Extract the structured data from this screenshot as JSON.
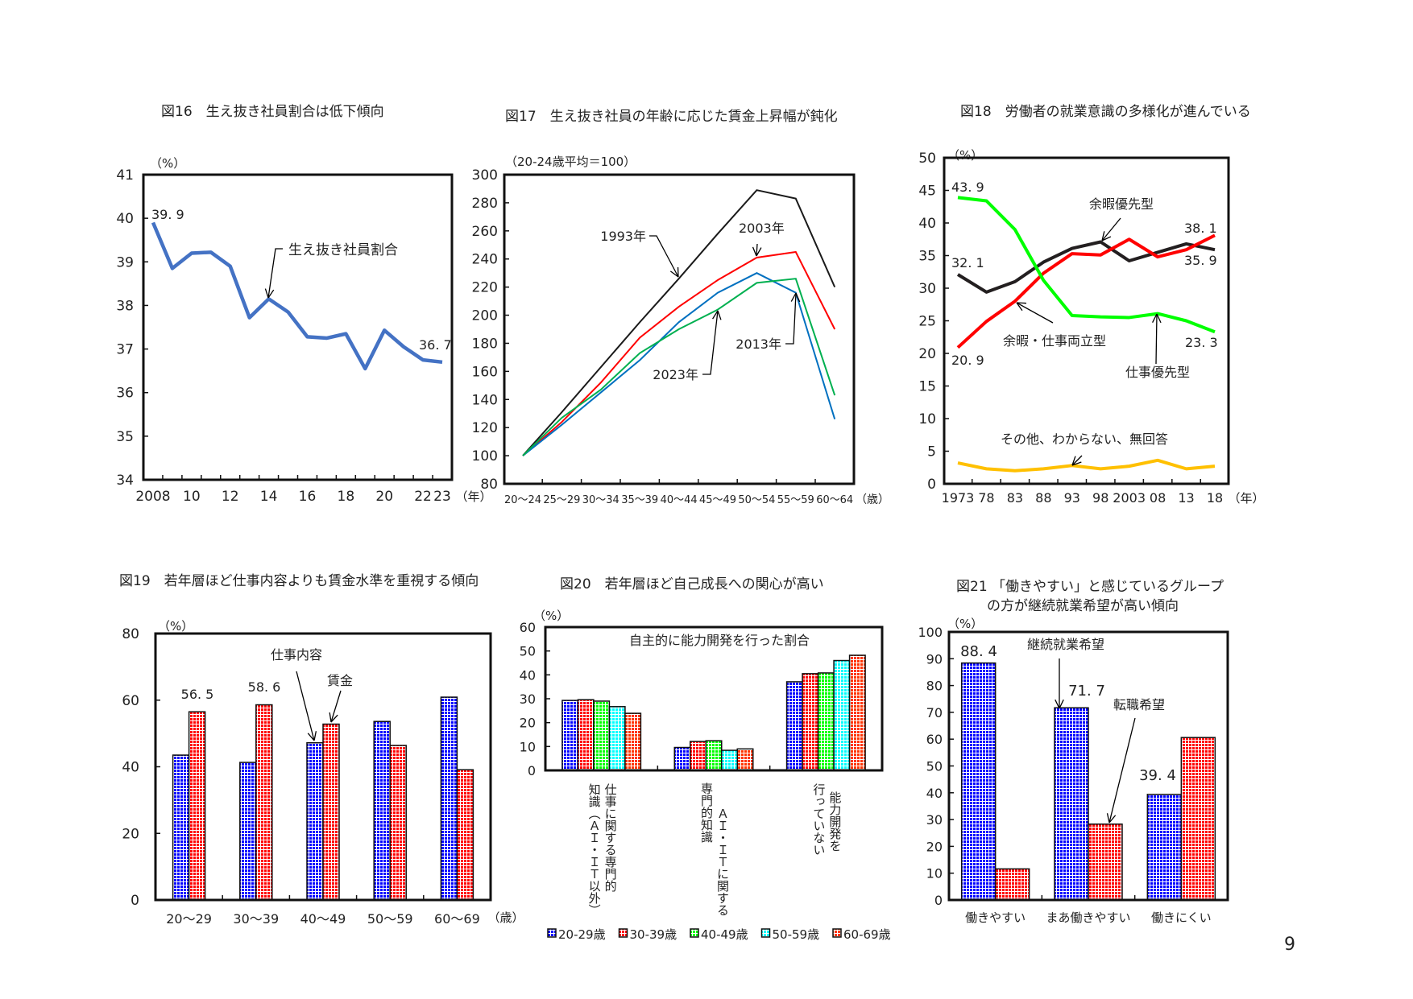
{
  "page_number": "9",
  "chart_data": [
    {
      "type": "line",
      "title": "図16　生え抜き社員割合は低下傾向",
      "ylabel": "（%）",
      "xlabel": "（年）",
      "ylim": [
        34,
        41
      ],
      "yticks": [
        34,
        35,
        36,
        37,
        38,
        39,
        40,
        41
      ],
      "x": [
        2008,
        2009,
        2010,
        2011,
        2012,
        2013,
        2014,
        2015,
        2016,
        2017,
        2018,
        2019,
        2020,
        2021,
        2022,
        2023
      ],
      "xticks": [
        2008,
        2010,
        2012,
        2014,
        2016,
        2018,
        2020,
        2022,
        2023
      ],
      "xtick_labels": [
        "2008",
        "10",
        "12",
        "14",
        "16",
        "18",
        "20",
        "22",
        "23"
      ],
      "series": [
        {
          "name": "生え抜き社員割合",
          "color": "#4472c4",
          "values": [
            39.9,
            38.85,
            39.2,
            39.22,
            38.9,
            37.72,
            38.15,
            37.85,
            37.28,
            37.25,
            37.35,
            36.55,
            37.43,
            37.05,
            36.75,
            36.7
          ]
        }
      ],
      "data_labels": [
        "39. 9",
        "36. 7"
      ],
      "grid": false
    },
    {
      "type": "line",
      "title": "図17　生え抜き社員の年齢に応じた賃金上昇幅が鈍化",
      "ylabel": "（20-24歳平均＝100）",
      "xlabel": "（歳）",
      "ylim": [
        80,
        300
      ],
      "yticks": [
        80,
        100,
        120,
        140,
        160,
        180,
        200,
        220,
        240,
        260,
        280,
        300
      ],
      "categories": [
        "20～24",
        "25～29",
        "30～34",
        "35～39",
        "40～44",
        "45～49",
        "50～54",
        "55～59",
        "60～64"
      ],
      "series": [
        {
          "name": "1993年",
          "color": "#1a1a1a",
          "values": [
            100,
            131,
            163,
            195,
            226,
            258,
            289,
            283,
            220
          ]
        },
        {
          "name": "2003年",
          "color": "#ff0000",
          "values": [
            100,
            124,
            152,
            184,
            206,
            225,
            241,
            245,
            190
          ]
        },
        {
          "name": "2013年",
          "color": "#0070c0",
          "values": [
            100,
            122,
            145,
            168,
            195,
            216,
            230,
            216,
            126
          ]
        },
        {
          "name": "2023年",
          "color": "#00b050",
          "values": [
            100,
            127,
            147,
            173,
            190,
            204,
            223,
            226,
            143
          ]
        }
      ],
      "grid": false
    },
    {
      "type": "line",
      "title": "図18　労働者の就業意識の多様化が進んでいる",
      "ylabel": "（%）",
      "xlabel": "（年）",
      "ylim": [
        0,
        50
      ],
      "yticks": [
        0,
        5,
        10,
        15,
        20,
        25,
        30,
        35,
        40,
        45,
        50
      ],
      "x": [
        1973,
        1978,
        1983,
        1988,
        1993,
        1998,
        2003,
        2008,
        2013,
        2018
      ],
      "xticks": [
        1973,
        1978,
        1983,
        1988,
        1993,
        1998,
        2003,
        2008,
        2013,
        2018
      ],
      "xtick_labels": [
        "1973",
        "78",
        "83",
        "88",
        "93",
        "98",
        "2003",
        "08",
        "13",
        "18"
      ],
      "series": [
        {
          "name": "余暇優先型",
          "color": "#231f20",
          "values": [
            32.1,
            29.4,
            31.0,
            34.0,
            36.1,
            37.1,
            34.2,
            35.5,
            36.8,
            35.9
          ]
        },
        {
          "name": "余暇・仕事両立型",
          "color": "#ff0000",
          "values": [
            20.9,
            24.9,
            28.0,
            32.3,
            35.3,
            35.1,
            37.5,
            34.8,
            35.9,
            38.1
          ]
        },
        {
          "name": "仕事優先型",
          "color": "#00ff00",
          "values": [
            43.9,
            43.4,
            39.0,
            31.2,
            25.8,
            25.6,
            25.5,
            26.1,
            25.0,
            23.3
          ]
        },
        {
          "name": "その他、わからない、無回答",
          "color": "#ffc000",
          "values": [
            3.2,
            2.3,
            2.0,
            2.3,
            2.8,
            2.3,
            2.7,
            3.6,
            2.3,
            2.7
          ]
        }
      ],
      "data_labels": [
        "43. 9",
        "32. 1",
        "20. 9",
        "38. 1",
        "35. 9",
        "23. 3"
      ],
      "grid": false
    },
    {
      "type": "bar",
      "title": "図19　若年層ほど仕事内容よりも賃金水準を重視する傾向",
      "ylabel": "（%）",
      "xlabel": "（歳）",
      "ylim": [
        0,
        80
      ],
      "yticks": [
        0,
        20,
        40,
        60,
        80
      ],
      "categories": [
        "20～29",
        "30～39",
        "40～49",
        "50～59",
        "60～69"
      ],
      "series": [
        {
          "name": "仕事内容",
          "color": "#0000ff",
          "values": [
            43.5,
            41.3,
            47.2,
            53.6,
            60.9
          ]
        },
        {
          "name": "賃金",
          "color": "#ff0000",
          "values": [
            56.5,
            58.6,
            52.8,
            46.4,
            39.1
          ]
        }
      ],
      "data_labels": [
        "56. 5",
        "58. 6"
      ],
      "grid": false
    },
    {
      "type": "bar",
      "title": "図20　若年層ほど自己成長への関心が高い",
      "subtitle": "自主的に能力開発を行った割合",
      "ylabel": "（%）",
      "ylim": [
        0,
        60
      ],
      "yticks": [
        0,
        10,
        20,
        30,
        40,
        50,
        60
      ],
      "categories": [
        [
          "仕事に関する専門的",
          "知識（ＡＩ・ＩＴ以外）"
        ],
        [
          "ＡＩ・ＩＴに関する",
          "専門的知識"
        ],
        [
          "能力開発を",
          "行っていない"
        ]
      ],
      "series": [
        {
          "name": "20-29歳",
          "color": "#0000ff",
          "values": [
            29.3,
            9.6,
            37.1
          ]
        },
        {
          "name": "30-39歳",
          "color": "#ff0000",
          "values": [
            29.6,
            12.1,
            40.5
          ]
        },
        {
          "name": "40-49歳",
          "color": "#00ff00",
          "values": [
            29.0,
            12.4,
            40.8
          ]
        },
        {
          "name": "50-59歳",
          "color": "#00ffff",
          "values": [
            26.7,
            8.4,
            46.0
          ]
        },
        {
          "name": "60-69歳",
          "color": "#ff3300",
          "values": [
            23.9,
            9.0,
            48.2
          ]
        }
      ],
      "legend": "bottom",
      "grid": false
    },
    {
      "type": "bar",
      "title_lines": [
        "図21 「働きやすい」と感じているグループ",
        "の方が継続就業希望が高い傾向"
      ],
      "ylabel": "（%）",
      "ylim": [
        0,
        100
      ],
      "yticks": [
        0,
        10,
        20,
        30,
        40,
        50,
        60,
        70,
        80,
        90,
        100
      ],
      "categories": [
        "働きやすい",
        "まあ働きやすい",
        "働きにくい"
      ],
      "series": [
        {
          "name": "継続就業希望",
          "color": "#0000ff",
          "values": [
            88.4,
            71.7,
            39.4
          ]
        },
        {
          "name": "転職希望",
          "color": "#ff0000",
          "values": [
            11.6,
            28.3,
            60.6
          ]
        }
      ],
      "data_labels": [
        "88. 4",
        "71. 7",
        "39. 4"
      ],
      "grid": false
    }
  ]
}
